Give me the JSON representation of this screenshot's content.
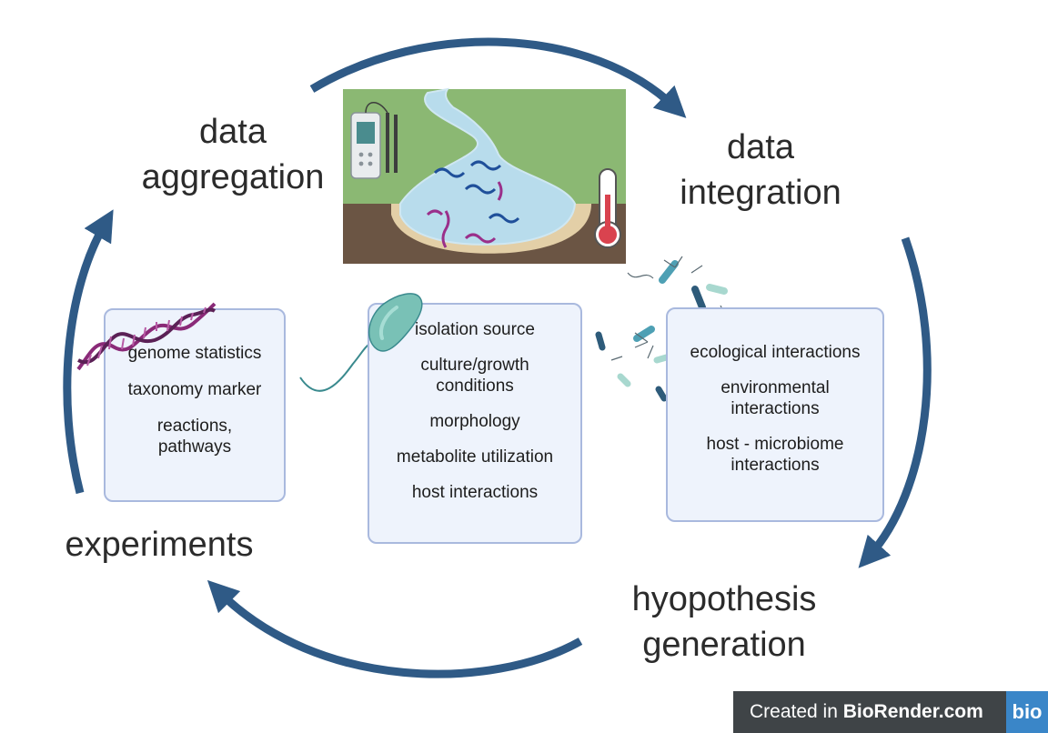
{
  "stages": {
    "data_aggregation": "data\naggregation",
    "data_integration": "data\nintegration",
    "hypothesis_generation": "hyopothesis\ngeneration",
    "experiments": "experiments"
  },
  "box_left": {
    "items": [
      "genome statistics",
      "taxonomy marker",
      "reactions,\npathways"
    ]
  },
  "box_center": {
    "items": [
      "isolation source",
      "culture/growth\nconditions",
      "morphology",
      "metabolite utilization",
      "host interactions"
    ]
  },
  "box_right": {
    "items": [
      "ecological interactions",
      "environmental\ninteractions",
      "host - microbiome\ninteractions"
    ]
  },
  "branding": {
    "prefix": "Created in ",
    "brand": "BioRender.com",
    "logo": "bio"
  },
  "colors": {
    "arrow": "#2f5a86",
    "grass": "#8bb873",
    "soil": "#6b5544",
    "water": "#b8dcec",
    "box_fill": "#eef3fc",
    "box_border": "#a9b9de",
    "bacterium": "#79c1b6",
    "dna_purple": "#8a2a78"
  },
  "icons": [
    "dna-helix-icon",
    "bacterium-icon",
    "microbe-cluster-icon",
    "thermometer-icon",
    "ph-meter-icon",
    "river-landscape-icon"
  ]
}
